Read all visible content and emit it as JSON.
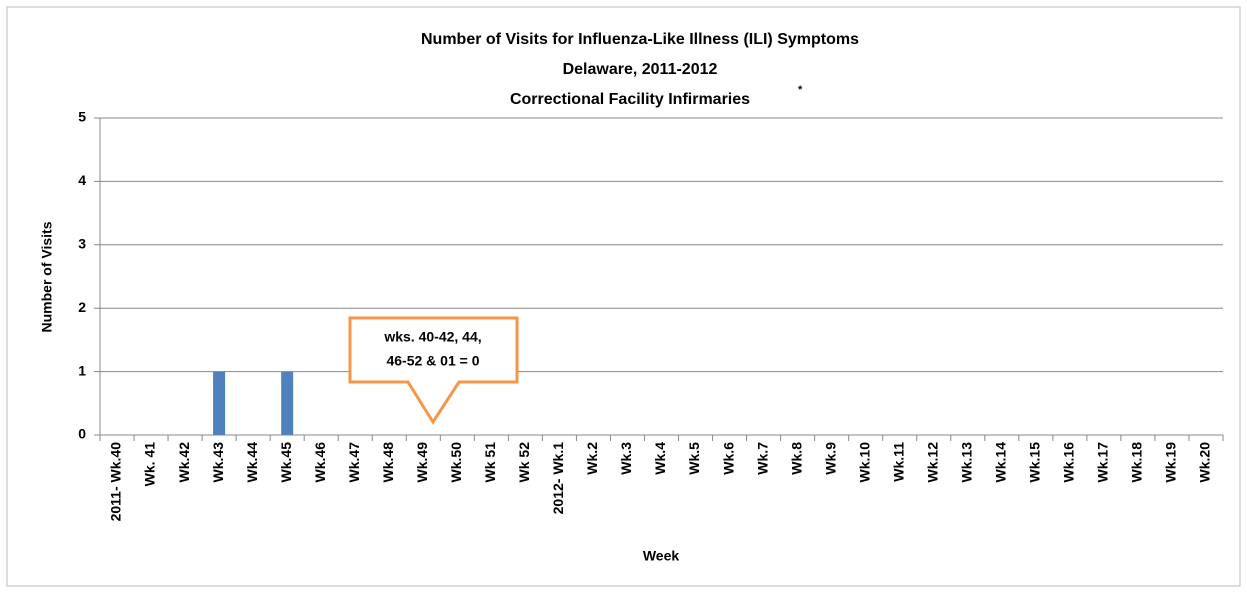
{
  "chart_data": {
    "type": "bar",
    "title": [
      "Number of Visits for Influenza-Like Illness (ILI) Symptoms",
      "Delaware, 2011-2012",
      "Correctional Facility Infirmaries"
    ],
    "title_marker": "*",
    "x_label": "Week",
    "y_label": "Number of Visits",
    "categories": [
      "2011- Wk.40",
      "Wk. 41",
      "Wk.42",
      "Wk.43",
      "Wk.44",
      "Wk.45",
      "Wk.46",
      "Wk.47",
      "Wk.48",
      "Wk.49",
      "Wk.50",
      "Wk 51",
      "Wk 52",
      "2012- Wk.1",
      "Wk.2",
      "Wk.3",
      "Wk.4",
      "Wk.5",
      "Wk.6",
      "Wk.7",
      "Wk.8",
      "Wk.9",
      "Wk.10",
      "Wk.11",
      "Wk.12",
      "Wk.13",
      "Wk.14",
      "Wk.15",
      "Wk.16",
      "Wk.17",
      "Wk.18",
      "Wk.19",
      "Wk.20"
    ],
    "values": [
      0,
      0,
      0,
      1,
      0,
      1,
      0,
      0,
      0,
      0,
      0,
      0,
      0,
      0,
      null,
      null,
      null,
      null,
      null,
      null,
      null,
      null,
      null,
      null,
      null,
      null,
      null,
      null,
      null,
      null,
      null,
      null,
      null
    ],
    "color": "#4f81bd",
    "ylim": [
      0,
      5
    ],
    "yticks": [
      0,
      1,
      2,
      3,
      4,
      5
    ],
    "grid": true,
    "annotation": [
      "wks. 40-42, 44,",
      "46-52 & 01 = 0"
    ]
  }
}
